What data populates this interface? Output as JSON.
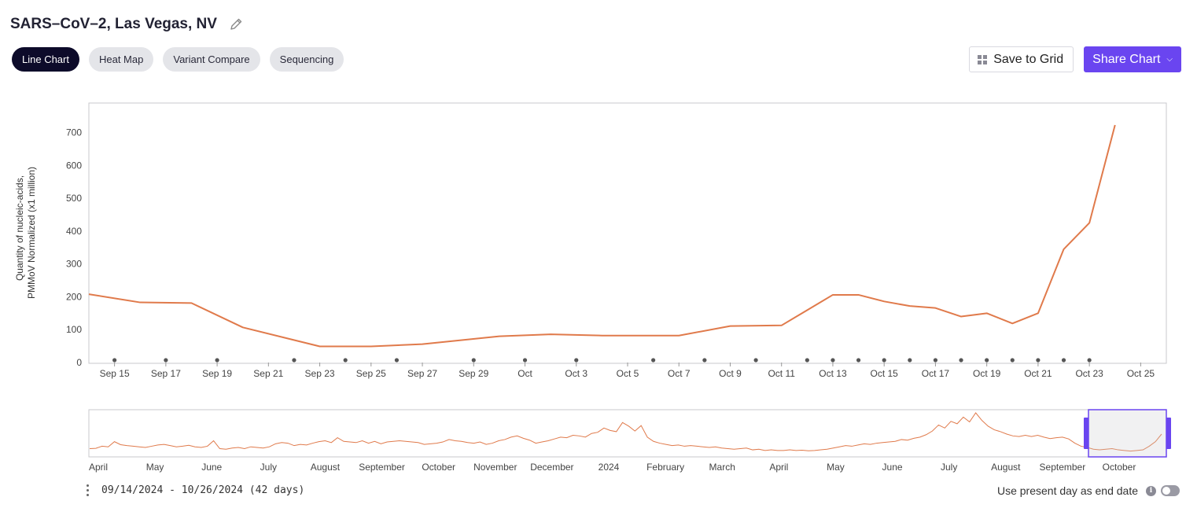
{
  "header": {
    "title": "SARS–CoV–2, Las Vegas, NV",
    "edit_icon": "pencil-icon"
  },
  "tabs": [
    {
      "label": "Line Chart",
      "active": true
    },
    {
      "label": "Heat Map",
      "active": false
    },
    {
      "label": "Variant Compare",
      "active": false
    },
    {
      "label": "Sequencing",
      "active": false
    }
  ],
  "actions": {
    "save_label": "Save to Grid",
    "share_label": "Share Chart",
    "save_icon": "grid-icon",
    "share_icon": "chevron-down-icon"
  },
  "colors": {
    "line": "#e07a4b",
    "accent": "#6a45f0",
    "active_tab": "#0d0b2a",
    "marker": "#555555"
  },
  "chart_data": {
    "type": "line",
    "ylabel": [
      "Quantity of nucleic-acids,",
      "PMMoV Normalized (x1 million)"
    ],
    "xlabel": "",
    "ylim": [
      0,
      790
    ],
    "yticks": [
      0,
      100,
      200,
      300,
      400,
      500,
      600,
      700
    ],
    "x_range": [
      "2024-09-14",
      "2024-10-26"
    ],
    "x_tick_labels": [
      "Sep 15",
      "Sep 17",
      "Sep 19",
      "Sep 21",
      "Sep 23",
      "Sep 25",
      "Sep 27",
      "Sep 29",
      "Oct",
      "Oct 3",
      "Oct 5",
      "Oct 7",
      "Oct 9",
      "Oct 11",
      "Oct 13",
      "Oct 15",
      "Oct 17",
      "Oct 19",
      "Oct 21",
      "Oct 23",
      "Oct 25"
    ],
    "grid": false,
    "series": [
      {
        "color": "#e07a4b",
        "points": [
          [
            "2024-09-14",
            208
          ],
          [
            "2024-09-16",
            183
          ],
          [
            "2024-09-18",
            181
          ],
          [
            "2024-09-20",
            107
          ],
          [
            "2024-09-23",
            49
          ],
          [
            "2024-09-25",
            49
          ],
          [
            "2024-09-27",
            56
          ],
          [
            "2024-09-30",
            80
          ],
          [
            "2024-10-02",
            86
          ],
          [
            "2024-10-04",
            82
          ],
          [
            "2024-10-07",
            82
          ],
          [
            "2024-10-09",
            111
          ],
          [
            "2024-10-11",
            113
          ],
          [
            "2024-10-13",
            206
          ],
          [
            "2024-10-14",
            206
          ],
          [
            "2024-10-15",
            186
          ],
          [
            "2024-10-16",
            172
          ],
          [
            "2024-10-17",
            166
          ],
          [
            "2024-10-18",
            140
          ],
          [
            "2024-10-19",
            150
          ],
          [
            "2024-10-20",
            119
          ],
          [
            "2024-10-21",
            150
          ],
          [
            "2024-10-22",
            345
          ],
          [
            "2024-10-23",
            425
          ],
          [
            "2024-10-24",
            723
          ]
        ]
      }
    ],
    "sample_markers": [
      "2024-09-15",
      "2024-09-17",
      "2024-09-19",
      "2024-09-22",
      "2024-09-24",
      "2024-09-26",
      "2024-09-29",
      "2024-10-01",
      "2024-10-03",
      "2024-10-06",
      "2024-10-08",
      "2024-10-10",
      "2024-10-12",
      "2024-10-13",
      "2024-10-14",
      "2024-10-15",
      "2024-10-16",
      "2024-10-17",
      "2024-10-18",
      "2024-10-19",
      "2024-10-20",
      "2024-10-21",
      "2024-10-22",
      "2024-10-23"
    ]
  },
  "overview": {
    "tick_labels": [
      "April",
      "May",
      "June",
      "July",
      "August",
      "September",
      "October",
      "November",
      "December",
      "2024",
      "February",
      "March",
      "April",
      "May",
      "June",
      "July",
      "August",
      "September",
      "October"
    ],
    "values": [
      22,
      23,
      30,
      28,
      45,
      35,
      32,
      30,
      28,
      26,
      30,
      34,
      36,
      32,
      28,
      30,
      33,
      28,
      26,
      30,
      48,
      22,
      20,
      24,
      26,
      22,
      28,
      26,
      24,
      28,
      38,
      42,
      40,
      32,
      36,
      34,
      40,
      45,
      48,
      42,
      58,
      46,
      44,
      42,
      48,
      40,
      46,
      38,
      44,
      46,
      48,
      46,
      44,
      42,
      36,
      38,
      40,
      44,
      52,
      48,
      46,
      42,
      40,
      44,
      36,
      40,
      48,
      52,
      60,
      64,
      56,
      50,
      40,
      44,
      48,
      54,
      60,
      58,
      66,
      64,
      60,
      72,
      76,
      90,
      82,
      78,
      108,
      96,
      80,
      98,
      60,
      46,
      40,
      36,
      32,
      34,
      30,
      32,
      30,
      28,
      26,
      28,
      24,
      22,
      20,
      22,
      24,
      18,
      20,
      16,
      18,
      16,
      16,
      18,
      16,
      17,
      15,
      16,
      18,
      20,
      24,
      28,
      32,
      30,
      34,
      38,
      36,
      40,
      42,
      44,
      46,
      52,
      50,
      56,
      60,
      68,
      80,
      100,
      90,
      112,
      104,
      126,
      110,
      140,
      115,
      96,
      84,
      78,
      70,
      64,
      62,
      66,
      62,
      66,
      60,
      55,
      58,
      60,
      54,
      40,
      30,
      26,
      20,
      18,
      20,
      22,
      18,
      16,
      14,
      16,
      18,
      30,
      45,
      70
    ],
    "window": [
      "2024-09-14",
      "2024-10-26"
    ]
  },
  "footer": {
    "range_text": "09/14/2024 - 10/26/2024 (42 days)",
    "present_label": "Use present day as end date",
    "info_icon": "info-icon",
    "toggle_on": false
  }
}
